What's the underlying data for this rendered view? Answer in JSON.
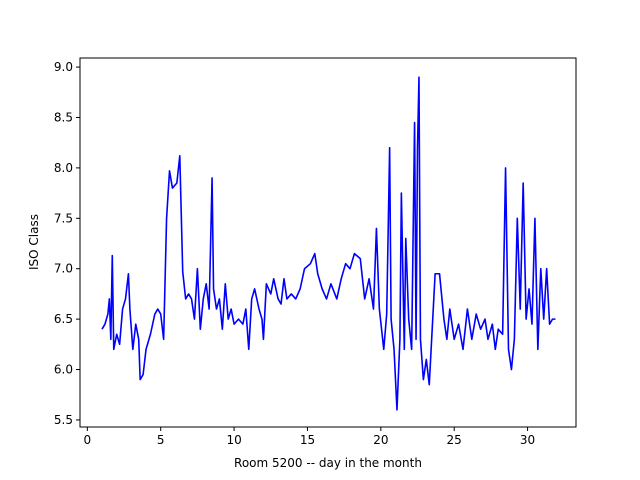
{
  "chart_data": {
    "type": "line",
    "xlabel": "Room 5200 -- day in the month",
    "ylabel": "ISO Class",
    "x": [
      1.0,
      1.2,
      1.4,
      1.5,
      1.6,
      1.7,
      1.8,
      2.0,
      2.2,
      2.4,
      2.6,
      2.8,
      2.9,
      3.1,
      3.3,
      3.5,
      3.6,
      3.8,
      4.0,
      4.3,
      4.6,
      4.8,
      5.0,
      5.2,
      5.4,
      5.6,
      5.8,
      6.1,
      6.3,
      6.5,
      6.7,
      6.9,
      7.1,
      7.3,
      7.5,
      7.7,
      7.9,
      8.1,
      8.3,
      8.5,
      8.6,
      8.8,
      9.0,
      9.2,
      9.4,
      9.6,
      9.8,
      10.0,
      10.3,
      10.6,
      10.8,
      11.0,
      11.2,
      11.4,
      11.7,
      11.9,
      12.0,
      12.2,
      12.5,
      12.7,
      13.0,
      13.2,
      13.4,
      13.6,
      13.9,
      14.2,
      14.5,
      14.8,
      15.2,
      15.5,
      15.7,
      16.0,
      16.3,
      16.6,
      17.0,
      17.3,
      17.6,
      17.9,
      18.2,
      18.6,
      18.9,
      19.2,
      19.5,
      19.7,
      19.9,
      20.2,
      20.4,
      20.6,
      20.7,
      20.9,
      21.1,
      21.3,
      21.4,
      21.6,
      21.7,
      21.9,
      22.1,
      22.3,
      22.4,
      22.5,
      22.6,
      22.7,
      22.9,
      23.1,
      23.3,
      23.5,
      23.7,
      24.0,
      24.3,
      24.5,
      24.7,
      25.0,
      25.3,
      25.6,
      25.9,
      26.2,
      26.5,
      26.8,
      27.1,
      27.3,
      27.6,
      27.8,
      28.0,
      28.3,
      28.5,
      28.7,
      28.9,
      29.1,
      29.3,
      29.5,
      29.7,
      29.9,
      30.1,
      30.3,
      30.5,
      30.7,
      30.9,
      31.1,
      31.3,
      31.5,
      31.7,
      31.9
    ],
    "series": [
      {
        "color": "#0000ff",
        "values": [
          6.4,
          6.45,
          6.55,
          6.7,
          6.3,
          7.13,
          6.2,
          6.35,
          6.25,
          6.6,
          6.7,
          6.95,
          6.6,
          6.2,
          6.45,
          6.3,
          5.9,
          5.95,
          6.2,
          6.35,
          6.55,
          6.6,
          6.55,
          6.3,
          7.5,
          7.97,
          7.8,
          7.85,
          8.12,
          6.97,
          6.7,
          6.75,
          6.7,
          6.5,
          7.0,
          6.4,
          6.7,
          6.85,
          6.6,
          7.9,
          6.8,
          6.6,
          6.7,
          6.4,
          6.85,
          6.5,
          6.6,
          6.45,
          6.5,
          6.45,
          6.6,
          6.2,
          6.7,
          6.8,
          6.6,
          6.5,
          6.3,
          6.85,
          6.75,
          6.9,
          6.7,
          6.65,
          6.9,
          6.7,
          6.75,
          6.7,
          6.8,
          7.0,
          7.05,
          7.15,
          6.95,
          6.8,
          6.7,
          6.85,
          6.7,
          6.9,
          7.05,
          7.0,
          7.15,
          7.1,
          6.7,
          6.9,
          6.6,
          7.4,
          6.6,
          6.2,
          6.55,
          8.2,
          6.5,
          6.2,
          5.6,
          6.3,
          7.75,
          6.2,
          7.3,
          6.5,
          6.2,
          8.45,
          6.3,
          8.2,
          8.9,
          6.3,
          5.9,
          6.1,
          5.85,
          6.4,
          6.95,
          6.95,
          6.5,
          6.3,
          6.6,
          6.3,
          6.45,
          6.2,
          6.6,
          6.3,
          6.55,
          6.4,
          6.5,
          6.3,
          6.45,
          6.2,
          6.4,
          6.35,
          8.0,
          6.2,
          6.0,
          6.3,
          7.5,
          6.6,
          7.85,
          6.5,
          6.8,
          6.45,
          7.5,
          6.2,
          7.0,
          6.5,
          7.0,
          6.45,
          6.5,
          6.5
        ]
      }
    ],
    "xlim": [
      -0.5,
      33.3
    ],
    "ylim": [
      5.43,
      9.09
    ],
    "xticks": [
      0,
      5,
      10,
      15,
      20,
      25,
      30
    ],
    "yticks": [
      5.5,
      {
        "value": 6,
        "label": "6.0"
      },
      6.5,
      {
        "value": 7,
        "label": "7.0"
      },
      7.5,
      {
        "value": 8,
        "label": "8.0"
      },
      8.5,
      {
        "value": 9,
        "label": "9.0"
      }
    ]
  }
}
